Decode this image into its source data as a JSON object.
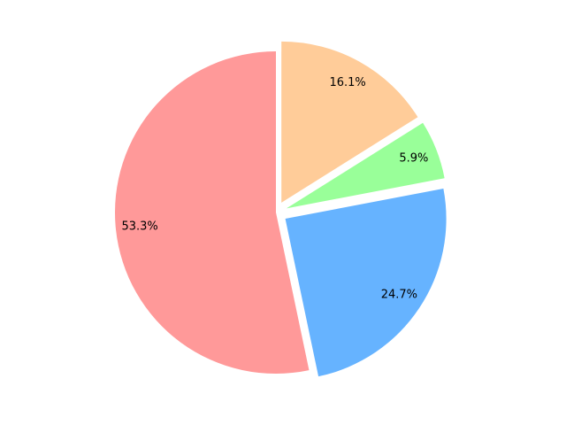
{
  "chart_data": {
    "type": "pie",
    "title": "",
    "legend": "none",
    "start_angle_deg": 90,
    "direction": "counterclockwise",
    "slices": [
      {
        "label": "",
        "value": 53.3,
        "label_text": "53.3%",
        "color": "#ff9999",
        "exploded": false
      },
      {
        "label": "",
        "value": 24.7,
        "label_text": "24.7%",
        "color": "#66b3ff",
        "exploded": true
      },
      {
        "label": "",
        "value": 5.9,
        "label_text": "5.9%",
        "color": "#99ff99",
        "exploded": true
      },
      {
        "label": "",
        "value": 16.1,
        "label_text": "16.1%",
        "color": "#ffcc99",
        "exploded": true
      }
    ]
  }
}
